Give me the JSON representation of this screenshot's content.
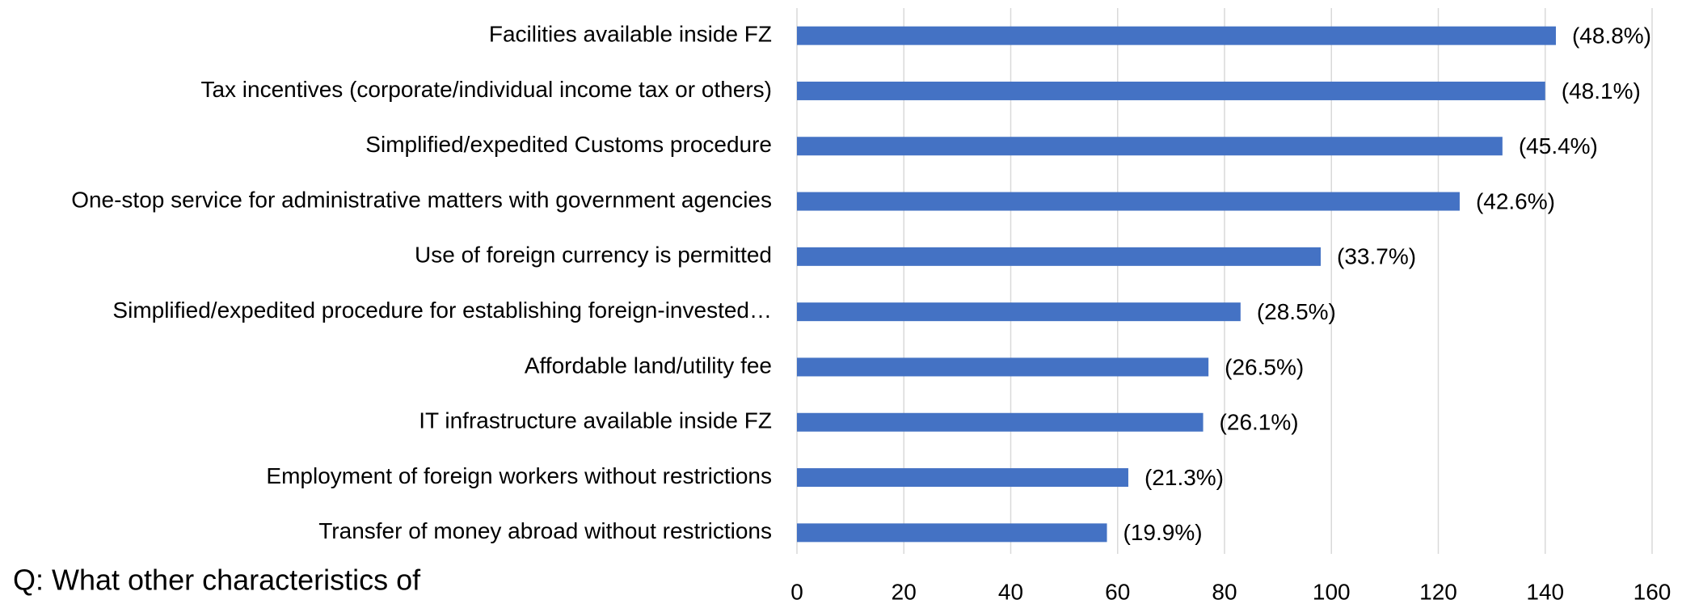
{
  "chart_data": {
    "type": "hbar",
    "caption": "Q: What other characteristics of",
    "categories": [
      "Facilities available inside FZ",
      "Tax incentives (corporate/individual income tax or others)",
      "Simplified/expedited Customs procedure",
      "One-stop service for administrative matters with government agencies",
      "Use of foreign currency is permitted",
      "Simplified/expedited procedure for establishing foreign-invested…",
      "Affordable land/utility fee",
      "IT infrastructure available inside FZ",
      "Employment of foreign workers without restrictions",
      "Transfer of money abroad without restrictions"
    ],
    "values": [
      142,
      140,
      132,
      124,
      98,
      83,
      77,
      76,
      62,
      58
    ],
    "annotations": [
      "(48.8%)",
      "(48.1%)",
      "(45.4%)",
      "(42.6%)",
      "(33.7%)",
      "(28.5%)",
      "(26.5%)",
      "(26.1%)",
      "(21.3%)",
      "(19.9%)"
    ],
    "color": "#4472c4",
    "xlim": [
      0,
      160
    ],
    "xticks": [
      0,
      20,
      40,
      60,
      80,
      100,
      120,
      140,
      160
    ],
    "grid": true
  }
}
